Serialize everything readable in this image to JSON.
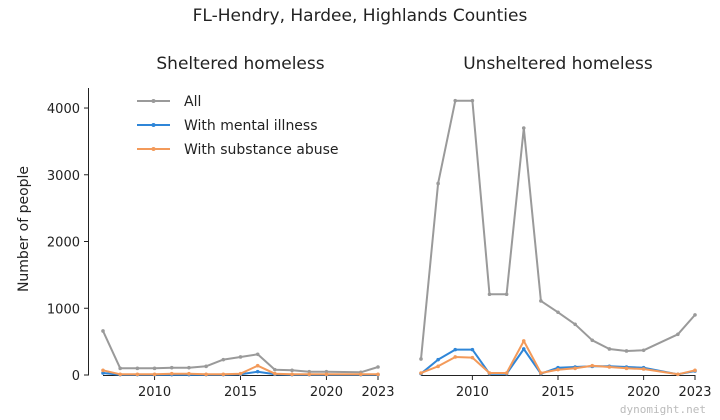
{
  "figure": {
    "suptitle": "FL-Hendry, Hardee, Highlands Counties",
    "watermark": "dynomight.net",
    "ylabel": "Number of people"
  },
  "colors": {
    "All": "#9a9a9a",
    "With mental illness": "#2f86d8",
    "With substance abuse": "#f39a5a"
  },
  "chart_data": [
    {
      "type": "line",
      "title": "Sheltered homeless",
      "xlabel": "",
      "ylabel": "Number of people",
      "xlim": [
        2007,
        2023
      ],
      "ylim": [
        0,
        4300
      ],
      "xticks": [
        2010,
        2015,
        2020,
        2023
      ],
      "yticks": [
        0,
        1000,
        2000,
        3000,
        4000
      ],
      "legend": "top-left",
      "grid": false,
      "x": [
        2007,
        2008,
        2009,
        2010,
        2011,
        2012,
        2013,
        2014,
        2015,
        2016,
        2017,
        2018,
        2019,
        2020,
        2022,
        2023
      ],
      "series": [
        {
          "name": "All",
          "values": [
            660,
            100,
            100,
            100,
            110,
            110,
            130,
            230,
            270,
            310,
            80,
            70,
            50,
            50,
            40,
            120
          ]
        },
        {
          "name": "With mental illness",
          "values": [
            30,
            5,
            5,
            5,
            5,
            5,
            5,
            5,
            10,
            50,
            10,
            5,
            5,
            5,
            5,
            5
          ]
        },
        {
          "name": "With substance abuse",
          "values": [
            70,
            10,
            10,
            10,
            20,
            20,
            10,
            10,
            20,
            140,
            20,
            10,
            10,
            10,
            10,
            10
          ]
        }
      ]
    },
    {
      "type": "line",
      "title": "Unsheltered homeless",
      "xlabel": "",
      "ylabel": "",
      "xlim": [
        2007,
        2023
      ],
      "ylim": [
        0,
        4300
      ],
      "xticks": [
        2010,
        2015,
        2020,
        2023
      ],
      "legend": "none",
      "grid": false,
      "x": [
        2007,
        2008,
        2009,
        2010,
        2011,
        2012,
        2013,
        2014,
        2015,
        2016,
        2017,
        2018,
        2019,
        2020,
        2022,
        2023
      ],
      "series": [
        {
          "name": "All",
          "values": [
            240,
            2870,
            4110,
            4110,
            1210,
            1210,
            3700,
            1110,
            940,
            760,
            520,
            390,
            360,
            370,
            610,
            900
          ]
        },
        {
          "name": "With mental illness",
          "values": [
            20,
            230,
            380,
            380,
            20,
            20,
            390,
            20,
            110,
            120,
            130,
            130,
            120,
            110,
            10,
            60
          ]
        },
        {
          "name": "With substance abuse",
          "values": [
            30,
            130,
            270,
            260,
            30,
            30,
            510,
            30,
            80,
            100,
            140,
            120,
            100,
            90,
            10,
            70
          ]
        }
      ]
    }
  ]
}
